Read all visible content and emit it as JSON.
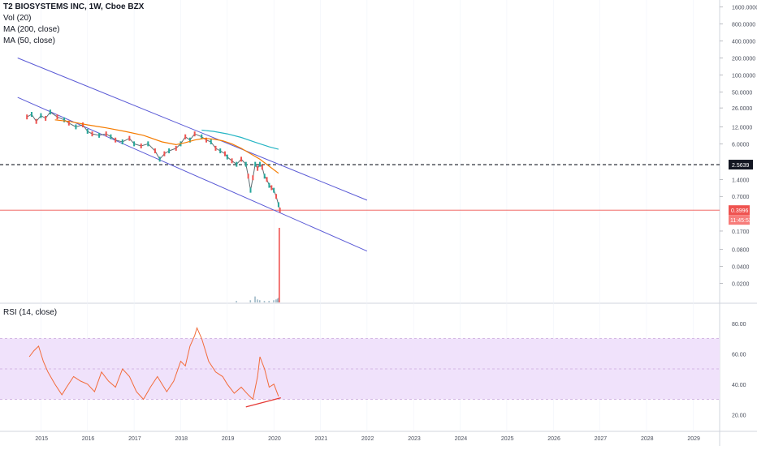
{
  "window": {
    "symbol_title": "T2 BIOSYSTEMS INC, 1W, Cboe BZX"
  },
  "legend": {
    "vol": "Vol (20)",
    "ma200": "MA (200, close)",
    "ma50": "MA (50, close)",
    "rsi": "RSI (14, close)"
  },
  "price_axis": {
    "labels": [
      "1600.0000",
      "800.0000",
      "400.0000",
      "200.0000",
      "100.0000",
      "50.0000",
      "26.0000",
      "12.0000",
      "6.0000",
      "2.5639",
      "1.4000",
      "0.7000",
      "0.3996",
      "11:45:53",
      "0.1700",
      "0.0800",
      "0.0400",
      "0.0200"
    ],
    "current_price": "0.3996",
    "countdown": "11:45:53",
    "horizontal_level": "2.5639"
  },
  "rsi_axis": {
    "labels": [
      "80.00",
      "60.00",
      "40.00",
      "20.00"
    ]
  },
  "time_axis": {
    "labels": [
      "2015",
      "2016",
      "2017",
      "2018",
      "2019",
      "2020",
      "2021",
      "2022",
      "2023",
      "2024",
      "2025",
      "2026",
      "2027",
      "2028",
      "2029"
    ]
  },
  "colors": {
    "channel": "#5b5bd6",
    "ma50": "#f57c00",
    "ma200": "#26b5c4",
    "current_price_line": "#ef5350",
    "level_line": "#131722",
    "rsi_band": "#f0e2fb",
    "rsi_line": "#f26b3a",
    "divergence": "#e53935",
    "volume": "#9eb9c7"
  },
  "chart_data": [
    {
      "type": "line",
      "title": "T2 BIOSYSTEMS INC, 1W, Cboe BZX",
      "y_scale": "log",
      "ylim": [
        0.012,
        2000
      ],
      "xlim": [
        2014.4,
        2029.5
      ],
      "current_price": 0.3996,
      "horizontal_level": 2.5639,
      "series": [
        {
          "name": "price",
          "x": [
            2014.7,
            2014.8,
            2014.9,
            2015.0,
            2015.1,
            2015.2,
            2015.35,
            2015.5,
            2015.6,
            2015.75,
            2015.9,
            2016.0,
            2016.1,
            2016.25,
            2016.4,
            2016.5,
            2016.6,
            2016.75,
            2016.9,
            2017.0,
            2017.15,
            2017.3,
            2017.45,
            2017.55,
            2017.65,
            2017.75,
            2017.9,
            2018.0,
            2018.1,
            2018.2,
            2018.3,
            2018.45,
            2018.55,
            2018.65,
            2018.75,
            2018.85,
            2018.95,
            2019.0,
            2019.1,
            2019.2,
            2019.3,
            2019.4,
            2019.45,
            2019.5,
            2019.55,
            2019.6,
            2019.65,
            2019.7,
            2019.75,
            2019.8,
            2019.85,
            2019.9,
            2019.95,
            2020.0,
            2020.05,
            2020.1,
            2020.13
          ],
          "values": [
            18,
            20,
            15,
            19,
            17,
            22,
            18,
            16,
            14,
            12,
            13,
            10,
            9,
            8.5,
            9,
            8,
            7,
            6.5,
            7.5,
            6,
            5.5,
            6,
            4.5,
            3.2,
            4,
            4.5,
            5,
            6,
            8,
            7,
            9,
            8,
            7,
            6.5,
            5,
            4.5,
            4,
            3.5,
            3,
            2.6,
            3.2,
            2.6,
            1.6,
            0.9,
            1.5,
            2.6,
            2.2,
            2.6,
            2.3,
            1.6,
            1.4,
            1.1,
            1.0,
            0.9,
            0.7,
            0.5,
            0.4
          ]
        },
        {
          "name": "MA (50, close)",
          "x": [
            2015.3,
            2015.6,
            2016.0,
            2016.4,
            2016.8,
            2017.2,
            2017.6,
            2017.9,
            2018.1,
            2018.3,
            2018.5,
            2018.7,
            2018.9,
            2019.1,
            2019.3,
            2019.5,
            2019.7,
            2019.9,
            2020.1
          ],
          "values": [
            16,
            15,
            13,
            11.5,
            10,
            8.5,
            6.5,
            5.8,
            6.3,
            7,
            7.5,
            7.3,
            6.8,
            6,
            5,
            4,
            3.2,
            2.4,
            1.8
          ]
        },
        {
          "name": "MA (200, close)",
          "x": [
            2018.45,
            2018.7,
            2019.0,
            2019.3,
            2019.6,
            2019.9,
            2020.1
          ],
          "values": [
            10.5,
            10,
            9,
            7.8,
            6.4,
            5.3,
            4.8
          ]
        }
      ],
      "channel_lines": [
        {
          "x": [
            2014.5,
            2022.0
          ],
          "values": [
            200,
            0.6
          ]
        },
        {
          "x": [
            2014.5,
            2022.0
          ],
          "values": [
            40,
            0.075
          ]
        }
      ]
    },
    {
      "type": "bar",
      "title": "Vol (20)",
      "note": "volume spike at 2020.1",
      "x": [
        2019.2,
        2019.5,
        2019.6,
        2019.65,
        2019.7,
        2019.8,
        2019.9,
        2020.0,
        2020.05,
        2020.08,
        2020.1,
        2020.12
      ],
      "values": [
        2,
        3,
        8,
        4,
        3,
        2,
        2,
        3,
        4,
        5,
        6,
        100
      ]
    },
    {
      "type": "line",
      "title": "RSI (14, close)",
      "ylim": [
        10,
        90
      ],
      "band": [
        30,
        70
      ],
      "x": [
        2014.75,
        2014.85,
        2014.95,
        2015.05,
        2015.15,
        2015.3,
        2015.45,
        2015.55,
        2015.7,
        2015.85,
        2016.0,
        2016.15,
        2016.3,
        2016.45,
        2016.6,
        2016.75,
        2016.9,
        2017.05,
        2017.2,
        2017.35,
        2017.5,
        2017.6,
        2017.7,
        2017.85,
        2018.0,
        2018.1,
        2018.2,
        2018.3,
        2018.35,
        2018.45,
        2018.6,
        2018.75,
        2018.9,
        2019.0,
        2019.15,
        2019.3,
        2019.45,
        2019.55,
        2019.65,
        2019.7,
        2019.8,
        2019.9,
        2020.0,
        2020.1
      ],
      "values": [
        58,
        62,
        65,
        55,
        48,
        40,
        33,
        38,
        45,
        42,
        40,
        35,
        48,
        42,
        38,
        50,
        45,
        35,
        30,
        38,
        45,
        40,
        35,
        42,
        55,
        52,
        65,
        72,
        77,
        70,
        55,
        48,
        45,
        40,
        34,
        38,
        33,
        30,
        45,
        58,
        50,
        38,
        40,
        32
      ],
      "divergence_line": {
        "x": [
          2019.4,
          2020.15
        ],
        "values": [
          25,
          31
        ]
      }
    }
  ]
}
